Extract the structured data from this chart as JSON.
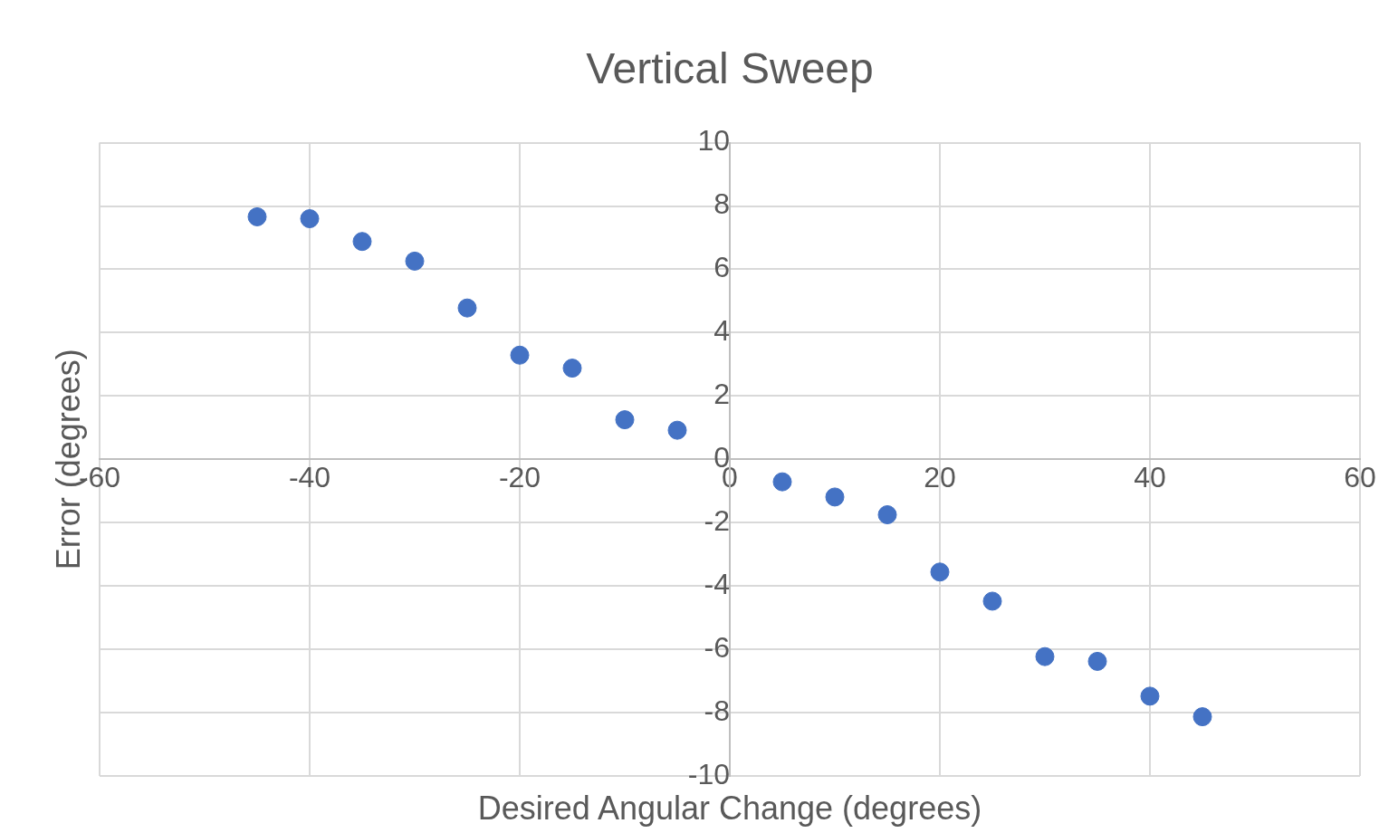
{
  "chart_data": {
    "type": "scatter",
    "title": "Vertical Sweep",
    "xlabel": "Desired Angular Change (degrees)",
    "ylabel": "Error (degrees)",
    "x": [
      -45,
      -40,
      -35,
      -30,
      -25,
      -20,
      -15,
      -10,
      -5,
      5,
      10,
      15,
      20,
      25,
      30,
      35,
      40,
      45
    ],
    "series": [
      {
        "color": "#4472c4",
        "values": [
          7.66,
          7.6,
          6.88,
          6.26,
          4.78,
          3.29,
          2.88,
          1.25,
          0.92,
          -0.71,
          -1.19,
          -1.75,
          -3.56,
          -4.48,
          -6.23,
          -6.38,
          -7.48,
          -8.13
        ]
      }
    ],
    "xlim": [
      -60,
      60
    ],
    "xticks": [
      -60,
      -40,
      -20,
      0,
      20,
      40,
      60
    ],
    "ylim": [
      -10,
      10
    ],
    "yticks": [
      -10,
      -8,
      -6,
      -4,
      -2,
      0,
      2,
      4,
      6,
      8,
      10
    ],
    "grid": true,
    "legend": false,
    "marker": "circle"
  }
}
